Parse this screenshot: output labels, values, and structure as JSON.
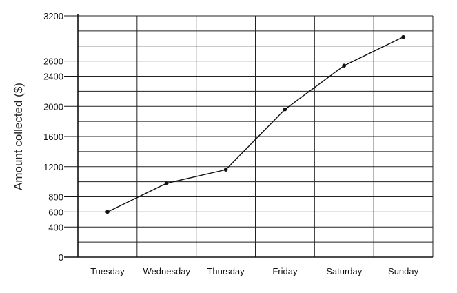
{
  "chart_data": {
    "type": "line",
    "title": "",
    "xlabel": "",
    "ylabel": "Amount collected ($)",
    "categories": [
      "Tuesday",
      "Wednesday",
      "Thursday",
      "Friday",
      "Saturday",
      "Sunday"
    ],
    "series": [
      {
        "values": [
          600,
          980,
          1160,
          1960,
          2540,
          2920
        ]
      }
    ],
    "yticks": [
      {
        "label": "0",
        "value": 0
      },
      {
        "label": "400",
        "value": 400
      },
      {
        "label": "600",
        "value": 600
      },
      {
        "label": "800",
        "value": 800
      },
      {
        "label": "1200",
        "value": 1200
      },
      {
        "label": "1600",
        "value": 1600
      },
      {
        "label": "2000",
        "value": 2000
      },
      {
        "label": "2400",
        "value": 2400
      },
      {
        "label": "2600",
        "value": 2600
      },
      {
        "label": "3200",
        "value": 3200
      }
    ],
    "ylim": [
      0,
      3200
    ],
    "grid": true,
    "grid_step": 200,
    "colors": {
      "line": "#111111",
      "grid": "#222222",
      "axis": "#111111"
    }
  }
}
